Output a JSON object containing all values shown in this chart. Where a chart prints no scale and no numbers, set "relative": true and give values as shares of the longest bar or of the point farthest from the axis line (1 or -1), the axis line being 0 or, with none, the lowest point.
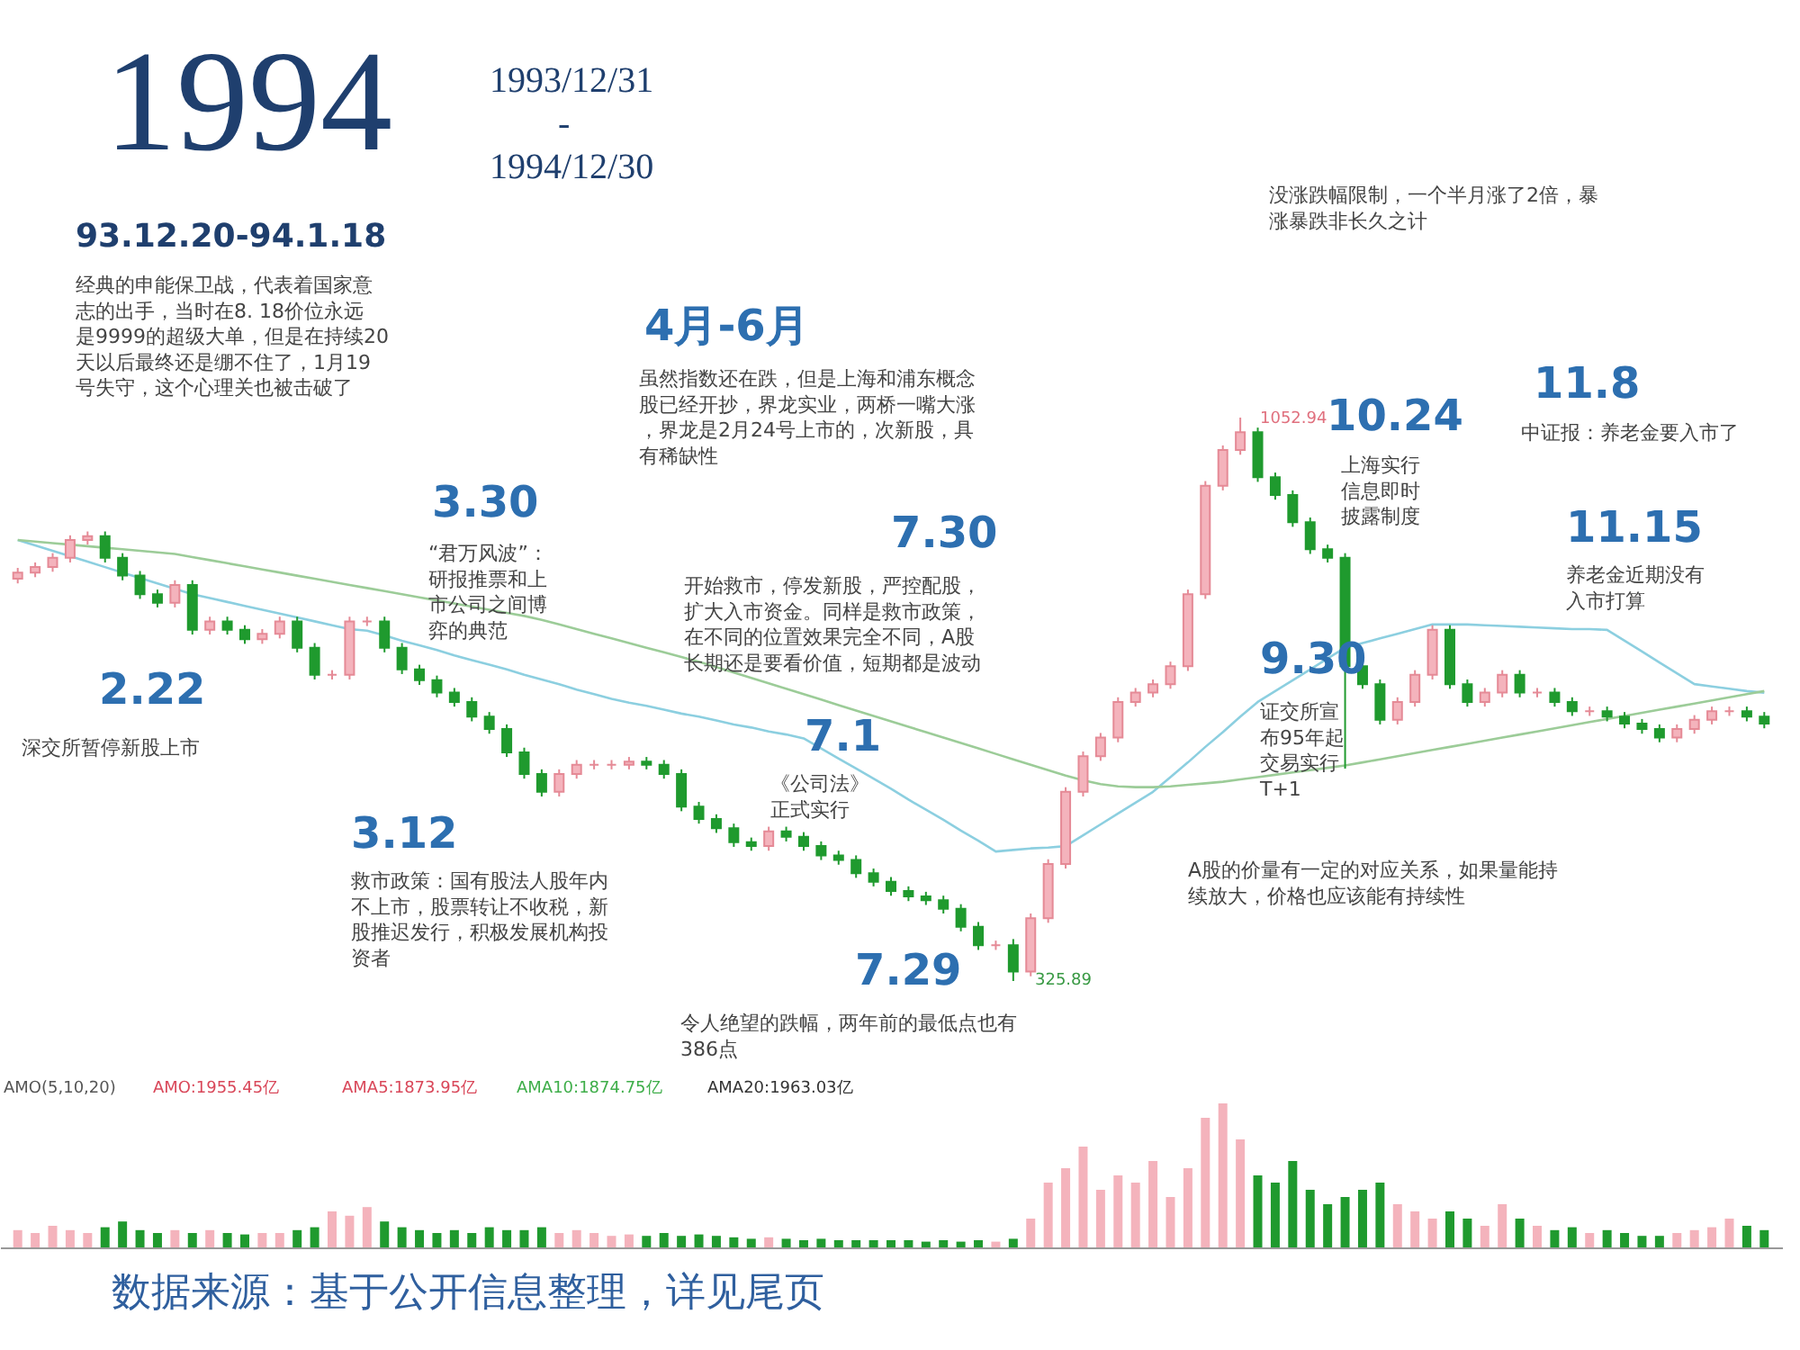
{
  "chart_data": [
    {
      "type": "candlestick",
      "title": "1994",
      "subtitle": "1993/12/31 - 1994/12/30",
      "categories": [
        null,
        null,
        null,
        null,
        null,
        null,
        null,
        null,
        null,
        null,
        null,
        null,
        null,
        null,
        null,
        null,
        null,
        null,
        null,
        null,
        null,
        null,
        null,
        null,
        null,
        null,
        null,
        null,
        null,
        null,
        null,
        null,
        null,
        null,
        null,
        null,
        null,
        null,
        null,
        null,
        null,
        null,
        null,
        null,
        null,
        null,
        null,
        null,
        null,
        null,
        null,
        null,
        null,
        null,
        null,
        null,
        null,
        null,
        null,
        null,
        null,
        null,
        null,
        null,
        null,
        null,
        null,
        null,
        null,
        null,
        null,
        null,
        null,
        null,
        null,
        null,
        null,
        null,
        null,
        null,
        null,
        null,
        null,
        null,
        null,
        null,
        null,
        null,
        null,
        null,
        null,
        null,
        null,
        null,
        null,
        null,
        null,
        null,
        null,
        null,
        null
      ],
      "ohlc": [
        [
          845,
          859,
          839,
          853
        ],
        [
          853,
          866,
          847,
          860
        ],
        [
          860,
          878,
          854,
          872
        ],
        [
          872,
          901,
          866,
          895
        ],
        [
          895,
          906,
          889,
          900
        ],
        [
          900,
          906,
          866,
          872
        ],
        [
          872,
          878,
          843,
          849
        ],
        [
          849,
          855,
          819,
          825
        ],
        [
          825,
          831,
          808,
          814
        ],
        [
          814,
          843,
          808,
          837
        ],
        [
          837,
          843,
          773,
          779
        ],
        [
          779,
          796,
          773,
          790
        ],
        [
          790,
          796,
          773,
          779
        ],
        [
          779,
          785,
          761,
          767
        ],
        [
          767,
          780,
          761,
          774
        ],
        [
          774,
          796,
          768,
          790
        ],
        [
          790,
          796,
          750,
          756
        ],
        [
          756,
          762,
          715,
          721
        ],
        [
          721,
          727,
          715,
          721
        ],
        [
          721,
          796,
          715,
          790
        ],
        [
          790,
          796,
          784,
          790
        ],
        [
          790,
          796,
          750,
          756
        ],
        [
          756,
          762,
          722,
          728
        ],
        [
          728,
          734,
          708,
          714
        ],
        [
          714,
          720,
          692,
          698
        ],
        [
          698,
          704,
          680,
          686
        ],
        [
          686,
          692,
          661,
          667
        ],
        [
          667,
          673,
          645,
          651
        ],
        [
          651,
          657,
          615,
          621
        ],
        [
          621,
          627,
          587,
          593
        ],
        [
          593,
          599,
          564,
          570
        ],
        [
          570,
          599,
          564,
          593
        ],
        [
          593,
          611,
          587,
          605
        ],
        [
          605,
          611,
          599,
          605
        ],
        [
          605,
          611,
          599,
          605
        ],
        [
          605,
          615,
          599,
          609
        ],
        [
          609,
          615,
          599,
          605
        ],
        [
          605,
          611,
          587,
          593
        ],
        [
          593,
          599,
          545,
          551
        ],
        [
          551,
          557,
          529,
          535
        ],
        [
          535,
          541,
          517,
          523
        ],
        [
          523,
          529,
          499,
          505
        ],
        [
          505,
          511,
          494,
          500
        ],
        [
          500,
          525,
          494,
          519
        ],
        [
          519,
          525,
          506,
          512
        ],
        [
          512,
          518,
          494,
          500
        ],
        [
          500,
          506,
          482,
          488
        ],
        [
          488,
          494,
          476,
          482
        ],
        [
          482,
          488,
          459,
          465
        ],
        [
          465,
          471,
          448,
          454
        ],
        [
          454,
          460,
          436,
          442
        ],
        [
          442,
          448,
          429,
          435
        ],
        [
          435,
          441,
          424,
          430
        ],
        [
          430,
          436,
          413,
          419
        ],
        [
          419,
          425,
          390,
          396
        ],
        [
          396,
          402,
          366,
          372
        ],
        [
          372,
          378,
          366,
          372
        ],
        [
          372,
          380,
          325.89,
          338
        ],
        [
          338,
          413,
          332,
          407
        ],
        [
          407,
          483,
          401,
          477
        ],
        [
          477,
          576,
          471,
          570
        ],
        [
          570,
          622,
          564,
          616
        ],
        [
          616,
          646,
          610,
          640
        ],
        [
          640,
          692,
          634,
          686
        ],
        [
          686,
          704,
          680,
          698
        ],
        [
          698,
          715,
          692,
          709
        ],
        [
          709,
          738,
          703,
          732
        ],
        [
          732,
          831,
          726,
          825
        ],
        [
          825,
          971,
          819,
          965
        ],
        [
          965,
          1017,
          959,
          1011
        ],
        [
          1011,
          1052.94,
          1005,
          1034
        ],
        [
          1034,
          1040,
          970,
          976
        ],
        [
          976,
          982,
          947,
          953
        ],
        [
          953,
          959,
          912,
          918
        ],
        [
          918,
          924,
          877,
          883
        ],
        [
          883,
          889,
          866,
          872
        ],
        [
          872,
          878,
          600,
          732
        ],
        [
          732,
          738,
          703,
          709
        ],
        [
          709,
          715,
          657,
          663
        ],
        [
          663,
          692,
          657,
          686
        ],
        [
          686,
          727,
          680,
          721
        ],
        [
          721,
          785,
          715,
          779
        ],
        [
          779,
          785,
          703,
          709
        ],
        [
          709,
          715,
          680,
          686
        ],
        [
          686,
          704,
          680,
          698
        ],
        [
          698,
          727,
          692,
          721
        ],
        [
          721,
          727,
          692,
          698
        ],
        [
          698,
          704,
          692,
          698
        ],
        [
          698,
          704,
          680,
          686
        ],
        [
          686,
          692,
          668,
          674
        ],
        [
          674,
          680,
          668,
          674
        ],
        [
          674,
          680,
          661,
          667
        ],
        [
          667,
          673,
          652,
          658
        ],
        [
          658,
          664,
          645,
          651
        ],
        [
          651,
          657,
          634,
          640
        ],
        [
          640,
          657,
          634,
          651
        ],
        [
          651,
          669,
          645,
          663
        ],
        [
          663,
          680,
          657,
          674
        ],
        [
          674,
          680,
          668,
          674
        ],
        [
          674,
          680,
          661,
          667
        ],
        [
          667,
          673,
          652,
          658
        ]
      ],
      "series": [
        {
          "type": "line",
          "color": "#8ccfe0",
          "values": [
            895,
            888,
            881,
            874,
            867,
            860,
            853,
            846,
            839,
            832,
            825,
            820,
            815,
            810,
            805,
            800,
            795,
            790,
            785,
            780,
            778,
            772,
            765,
            759,
            753,
            746,
            740,
            734,
            728,
            721,
            715,
            709,
            702,
            696,
            690,
            685,
            681,
            676,
            671,
            667,
            662,
            657,
            653,
            648,
            644,
            639,
            626,
            613,
            600,
            587,
            574,
            560,
            547,
            534,
            520,
            507,
            493,
            495,
            497,
            498,
            500,
            514,
            528,
            542,
            556,
            570,
            589,
            608,
            628,
            647,
            667,
            686,
            700,
            714,
            728,
            742,
            756,
            762,
            768,
            774,
            780,
            786,
            786,
            786,
            785,
            784,
            783,
            782,
            781,
            780,
            780,
            779,
            765,
            751,
            737,
            723,
            709,
            706,
            703,
            700,
            698
          ]
        },
        {
          "type": "line",
          "color": "#9ccc98",
          "values": [
            895,
            893,
            891,
            889,
            887,
            885,
            883,
            881,
            879,
            877,
            873,
            869,
            865,
            861,
            857,
            853,
            849,
            845,
            841,
            837,
            833,
            829,
            825,
            821,
            817,
            813,
            809,
            805,
            801,
            797,
            792,
            786,
            780,
            774,
            768,
            762,
            756,
            750,
            744,
            738,
            731,
            724,
            717,
            710,
            703,
            696,
            689,
            682,
            675,
            668,
            661,
            654,
            647,
            640,
            633,
            626,
            619,
            612,
            605,
            598,
            591,
            585,
            580,
            577,
            576,
            576,
            577,
            579,
            581,
            583,
            586,
            589,
            592,
            595,
            598,
            601,
            604,
            608,
            612,
            616,
            620,
            624,
            628,
            632,
            636,
            640,
            644,
            648,
            652,
            656,
            660,
            664,
            668,
            672,
            676,
            680,
            684,
            688,
            692,
            696,
            700
          ]
        }
      ],
      "annotations": [
        "93.12.20-94.1.18",
        "经典的申能保卫战，代表着国家意志的出手，当时在8. 18价位永远是9999的超级大单，但是在持续20天以后最终还是绷不住了，1月19号失守，这个心理关也被击破了",
        "2.22",
        "深交所暂停新股上市",
        "3.30",
        "“君万风波”：研报推票和上市公司之间博弈的典范",
        "3.12",
        "救市政策：国有股法人股年内不上市，股票转让不收税，新股推迟发行，积极发展机构投资者",
        "4月-6月",
        "虽然指数还在跌，但是上海和浦东概念股已经开抄，界龙实业，两桥一嘴大涨，界龙是2月24号上市的，次新股，具有稀缺性",
        "7.30",
        "开始救市，停发新股，严控配股，扩大入市资金。同样是救市政策，在不同的位置效果完全不同，A股长期还是要看价值，短期都是波动",
        "7.1",
        "《公司法》正式实行",
        "7.29",
        "令人绝望的跌幅，两年前的最低点也有386点",
        "9.30",
        "证交所宣布95年起交易实行T+1",
        "10.24",
        "上海实行信息即时披露制度",
        "没涨跌幅限制，一个半月涨了2倍，暴涨暴跌非长久之计",
        "11.8",
        "中证报：养老金要入市了",
        "11.15",
        "养老金近期没有入市打算",
        "A股的价量有一定的对应关系，如果量能持续放大，价格也应该能有持续性",
        "1052.94",
        "325.89"
      ]
    },
    {
      "type": "bar",
      "relative": true,
      "categories": [
        null,
        null,
        null,
        null,
        null,
        null,
        null,
        null,
        null,
        null,
        null,
        null,
        null,
        null,
        null,
        null,
        null,
        null,
        null,
        null,
        null,
        null,
        null,
        null,
        null,
        null,
        null,
        null,
        null,
        null,
        null,
        null,
        null,
        null,
        null,
        null,
        null,
        null,
        null,
        null,
        null,
        null,
        null,
        null,
        null,
        null,
        null,
        null,
        null,
        null,
        null,
        null,
        null,
        null,
        null,
        null,
        null,
        null,
        null,
        null,
        null,
        null,
        null,
        null,
        null,
        null,
        null,
        null,
        null,
        null,
        null,
        null,
        null,
        null,
        null,
        null,
        null,
        null,
        null,
        null,
        null,
        null,
        null,
        null,
        null,
        null,
        null,
        null,
        null,
        null,
        null,
        null,
        null,
        null,
        null,
        null,
        null,
        null,
        null,
        null,
        null
      ],
      "values": [
        0.12,
        0.1,
        0.15,
        0.12,
        0.1,
        0.14,
        0.18,
        0.12,
        0.1,
        0.12,
        0.1,
        0.12,
        0.1,
        0.09,
        0.1,
        0.1,
        0.12,
        0.14,
        0.25,
        0.22,
        0.28,
        0.18,
        0.14,
        0.12,
        0.1,
        0.12,
        0.1,
        0.14,
        0.12,
        0.12,
        0.14,
        0.1,
        0.12,
        0.1,
        0.08,
        0.09,
        0.08,
        0.1,
        0.08,
        0.09,
        0.08,
        0.07,
        0.06,
        0.07,
        0.06,
        0.05,
        0.06,
        0.05,
        0.05,
        0.05,
        0.05,
        0.05,
        0.04,
        0.05,
        0.04,
        0.05,
        0.04,
        0.06,
        0.2,
        0.45,
        0.55,
        0.7,
        0.4,
        0.5,
        0.45,
        0.6,
        0.35,
        0.55,
        0.9,
        1.0,
        0.75,
        0.5,
        0.45,
        0.6,
        0.4,
        0.3,
        0.35,
        0.4,
        0.45,
        0.3,
        0.25,
        0.2,
        0.25,
        0.2,
        0.15,
        0.3,
        0.2,
        0.15,
        0.12,
        0.14,
        0.1,
        0.12,
        0.1,
        0.08,
        0.08,
        0.1,
        0.12,
        0.14,
        0.2,
        0.15,
        0.12
      ],
      "annotations": [
        "AMO(5,10,20)",
        "AMO:1955.45亿",
        "AMA5:1873.95亿",
        "AMA10:1874.75亿",
        "AMA20:1963.03亿",
        "数据来源：基于公开信息整理，详见尾页"
      ]
    }
  ]
}
